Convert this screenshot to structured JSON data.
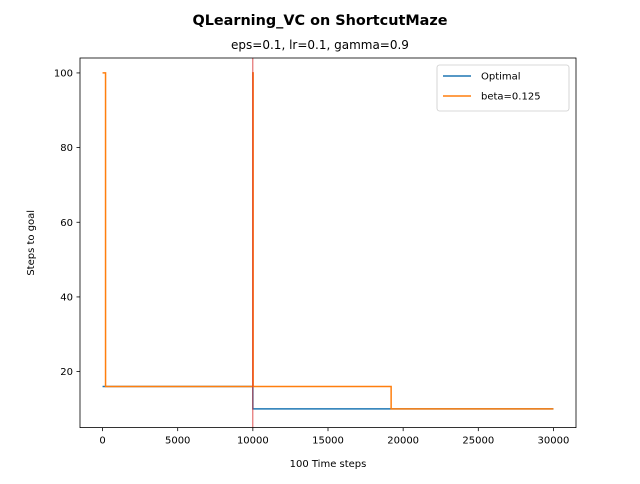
{
  "chart_data": {
    "type": "line",
    "title": "QLearning_VC on ShortcutMaze",
    "subtitle": "eps=0.1, lr=0.1, gamma=0.9",
    "xlabel": "100 Time steps",
    "ylabel": "Steps to goal",
    "xlim": [
      -1500,
      31500
    ],
    "ylim": [
      5,
      104
    ],
    "xticks": [
      0,
      5000,
      10000,
      15000,
      20000,
      25000,
      30000
    ],
    "yticks": [
      20,
      40,
      60,
      80,
      100
    ],
    "grid": false,
    "legend_position": "upper right",
    "series": [
      {
        "name": "Optimal",
        "color": "#1f77b4",
        "x": [
          0,
          10000,
          10000,
          30000
        ],
        "y": [
          16,
          16,
          10,
          10
        ]
      },
      {
        "name": "beta=0.125",
        "color": "#ff7f0e",
        "x": [
          0,
          200,
          200,
          280,
          280,
          10000,
          10000,
          10020,
          10020,
          19200,
          19200,
          30000
        ],
        "y": [
          100,
          100,
          16,
          16,
          16,
          16,
          100,
          100,
          16,
          16,
          10,
          10
        ]
      }
    ],
    "vline": {
      "x": 10000,
      "color": "#d62728"
    }
  }
}
